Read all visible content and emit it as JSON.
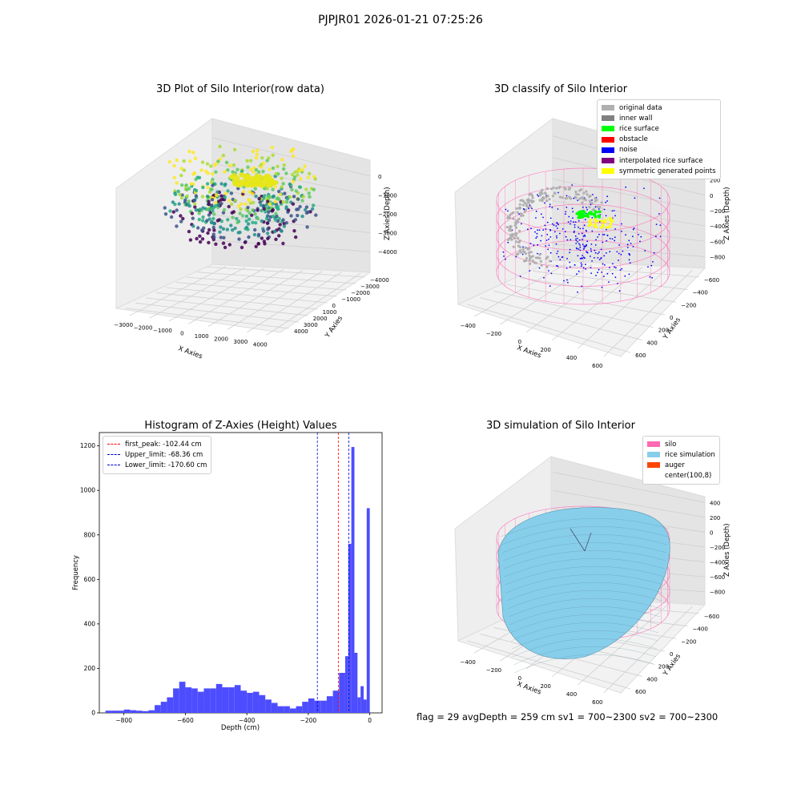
{
  "suptitle": "PJPJR01 2026-01-21 07:25:26",
  "footer": "flag = 29  avgDepth = 259 cm  sv1 = 700~2300  sv2 = 700~2300",
  "chart_data": [
    {
      "type": "scatter",
      "dims": "3d",
      "title": "3D Plot of Silo Interior(row data)",
      "xlabel": "X Axies",
      "ylabel": "Y Axies",
      "zlabel": "Z Axies (Depth)",
      "xticks": [
        "−3000",
        "−2000",
        "−1000",
        "0",
        "1000",
        "2000",
        "3000",
        "4000"
      ],
      "yticks": [
        "4000",
        "3000",
        "2000",
        "1000",
        "0",
        "−1000",
        "−2000",
        "−3000",
        "−4000"
      ],
      "zticks": [
        "0",
        "−1000",
        "−2000",
        "−3000",
        "−4000"
      ],
      "xlim": [
        -3500,
        4500
      ],
      "ylim": [
        -4500,
        4500
      ],
      "zlim": [
        -4500,
        0
      ],
      "colormap": "viridis",
      "grid": true
    },
    {
      "type": "scatter",
      "dims": "3d",
      "title": "3D classify of Silo Interior",
      "xlabel": "X Axies",
      "ylabel": "Y Axies",
      "zlabel": "Z Axies (Depth)",
      "xticks": [
        "−400",
        "−200",
        "0",
        "200",
        "400",
        "600"
      ],
      "yticks": [
        "600",
        "400",
        "200",
        "0",
        "−200",
        "−400",
        "−600"
      ],
      "zticks": [
        "200",
        "0",
        "−200",
        "−400",
        "−600",
        "−800"
      ],
      "xlim": [
        -500,
        700
      ],
      "ylim": [
        -650,
        650
      ],
      "zlim": [
        -900,
        250
      ],
      "legend": [
        {
          "label": "original data",
          "color": "#b0b0b0"
        },
        {
          "label": "inner wall",
          "color": "#808080"
        },
        {
          "label": "rice surface",
          "color": "#00ff00"
        },
        {
          "label": "obstacle",
          "color": "#ff0000"
        },
        {
          "label": "noise",
          "color": "#0000ff"
        },
        {
          "label": "interpolated rice surface",
          "color": "#800080"
        },
        {
          "label": "symmetric generated points",
          "color": "#ffff00"
        }
      ],
      "legend_position": "top-right",
      "grid": true
    },
    {
      "type": "bar",
      "subtype": "histogram",
      "title": "Histogram of Z-Axies (Height) Values",
      "xlabel": "Depth (cm)",
      "ylabel": "Frequency",
      "xlim": [
        -880,
        40
      ],
      "ylim": [
        0,
        1260
      ],
      "xticks": [
        "−800",
        "−600",
        "−400",
        "−200",
        "0"
      ],
      "xtick_values": [
        -800,
        -600,
        -400,
        -200,
        0
      ],
      "yticks": [
        "0",
        "200",
        "400",
        "600",
        "800",
        "1000",
        "1200"
      ],
      "ytick_values": [
        0,
        200,
        400,
        600,
        800,
        1000,
        1200
      ],
      "bar_color": "#4d4dff",
      "bins": [
        {
          "x0": -860,
          "x1": -840,
          "y": 10
        },
        {
          "x0": -840,
          "x1": -820,
          "y": 10
        },
        {
          "x0": -820,
          "x1": -800,
          "y": 10
        },
        {
          "x0": -800,
          "x1": -780,
          "y": 15
        },
        {
          "x0": -780,
          "x1": -760,
          "y": 12
        },
        {
          "x0": -760,
          "x1": -740,
          "y": 10
        },
        {
          "x0": -740,
          "x1": -720,
          "y": 8
        },
        {
          "x0": -720,
          "x1": -700,
          "y": 12
        },
        {
          "x0": -700,
          "x1": -680,
          "y": 35
        },
        {
          "x0": -680,
          "x1": -660,
          "y": 50
        },
        {
          "x0": -660,
          "x1": -640,
          "y": 70
        },
        {
          "x0": -640,
          "x1": -620,
          "y": 110
        },
        {
          "x0": -620,
          "x1": -600,
          "y": 140
        },
        {
          "x0": -600,
          "x1": -580,
          "y": 115
        },
        {
          "x0": -580,
          "x1": -560,
          "y": 110
        },
        {
          "x0": -560,
          "x1": -540,
          "y": 95
        },
        {
          "x0": -540,
          "x1": -520,
          "y": 110
        },
        {
          "x0": -520,
          "x1": -500,
          "y": 110
        },
        {
          "x0": -500,
          "x1": -480,
          "y": 130
        },
        {
          "x0": -480,
          "x1": -460,
          "y": 115
        },
        {
          "x0": -460,
          "x1": -440,
          "y": 115
        },
        {
          "x0": -440,
          "x1": -420,
          "y": 125
        },
        {
          "x0": -420,
          "x1": -400,
          "y": 100
        },
        {
          "x0": -400,
          "x1": -380,
          "y": 90
        },
        {
          "x0": -380,
          "x1": -360,
          "y": 95
        },
        {
          "x0": -360,
          "x1": -340,
          "y": 80
        },
        {
          "x0": -340,
          "x1": -320,
          "y": 60
        },
        {
          "x0": -320,
          "x1": -300,
          "y": 45
        },
        {
          "x0": -300,
          "x1": -280,
          "y": 30
        },
        {
          "x0": -280,
          "x1": -260,
          "y": 30
        },
        {
          "x0": -260,
          "x1": -240,
          "y": 20
        },
        {
          "x0": -240,
          "x1": -220,
          "y": 30
        },
        {
          "x0": -220,
          "x1": -200,
          "y": 50
        },
        {
          "x0": -200,
          "x1": -180,
          "y": 65
        },
        {
          "x0": -180,
          "x1": -160,
          "y": 55
        },
        {
          "x0": -160,
          "x1": -140,
          "y": 55
        },
        {
          "x0": -140,
          "x1": -120,
          "y": 75
        },
        {
          "x0": -120,
          "x1": -100,
          "y": 100
        },
        {
          "x0": -100,
          "x1": -80,
          "y": 180
        },
        {
          "x0": -80,
          "x1": -70,
          "y": 255
        },
        {
          "x0": -70,
          "x1": -60,
          "y": 760
        },
        {
          "x0": -60,
          "x1": -50,
          "y": 1195
        },
        {
          "x0": -50,
          "x1": -40,
          "y": 270
        },
        {
          "x0": -40,
          "x1": -30,
          "y": 70
        },
        {
          "x0": -30,
          "x1": -20,
          "y": 120
        },
        {
          "x0": -20,
          "x1": -10,
          "y": 60
        },
        {
          "x0": -10,
          "x1": 0,
          "y": 920
        }
      ],
      "vlines": [
        {
          "label": "first_peak: -102.44 cm",
          "x": -102.44,
          "color": "#ff0000"
        },
        {
          "label": "Upper_limit: -68.36 cm",
          "x": -68.36,
          "color": "#0000cc"
        },
        {
          "label": "Lower_limit: -170.60 cm",
          "x": -170.6,
          "color": "#0000cc"
        }
      ],
      "legend_position": "top-left",
      "grid": false
    },
    {
      "type": "surface",
      "dims": "3d",
      "title": "3D simulation of Silo Interior",
      "xlabel": "X Axies",
      "ylabel": "Y Axies",
      "zlabel": "Z Axies (Depth)",
      "xticks": [
        "−400",
        "−200",
        "0",
        "200",
        "400",
        "600"
      ],
      "yticks": [
        "600",
        "400",
        "200",
        "0",
        "−200",
        "−400",
        "−600"
      ],
      "zticks": [
        "400",
        "200",
        "0",
        "−200",
        "−400",
        "−600",
        "−800"
      ],
      "xlim": [
        -500,
        700
      ],
      "ylim": [
        -650,
        650
      ],
      "zlim": [
        -900,
        450
      ],
      "legend": [
        {
          "label": "silo",
          "color": "#ff69b4"
        },
        {
          "label": "rice simulation",
          "color": "#87ceeb"
        },
        {
          "label": "auger",
          "color": "#ff4500"
        },
        {
          "label": "center(100,8)",
          "color": ""
        }
      ],
      "legend_position": "top-right",
      "grid": true
    }
  ]
}
